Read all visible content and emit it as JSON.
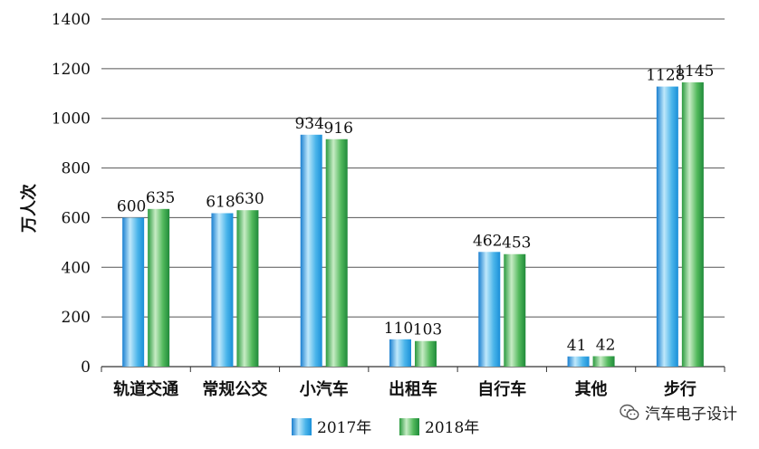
{
  "chart_data": {
    "type": "bar",
    "title": "",
    "xlabel": "",
    "ylabel": "万人次",
    "ylim": [
      0,
      1400
    ],
    "yticks": [
      0,
      200,
      400,
      600,
      800,
      1000,
      1200,
      1400
    ],
    "grid": true,
    "legend_position": "bottom",
    "categories": [
      "轨道交通",
      "常规公交",
      "小汽车",
      "出租车",
      "自行车",
      "其他",
      "步行"
    ],
    "series": [
      {
        "name": "2017年",
        "values": [
          600,
          618,
          934,
          110,
          462,
          41,
          1128
        ],
        "color": "#29a8e0"
      },
      {
        "name": "2018年",
        "values": [
          635,
          630,
          916,
          103,
          453,
          42,
          1145
        ],
        "color": "#2e9e4a"
      }
    ]
  },
  "watermark": {
    "text": "汽车电子设计",
    "icon": "wechat-icon"
  }
}
